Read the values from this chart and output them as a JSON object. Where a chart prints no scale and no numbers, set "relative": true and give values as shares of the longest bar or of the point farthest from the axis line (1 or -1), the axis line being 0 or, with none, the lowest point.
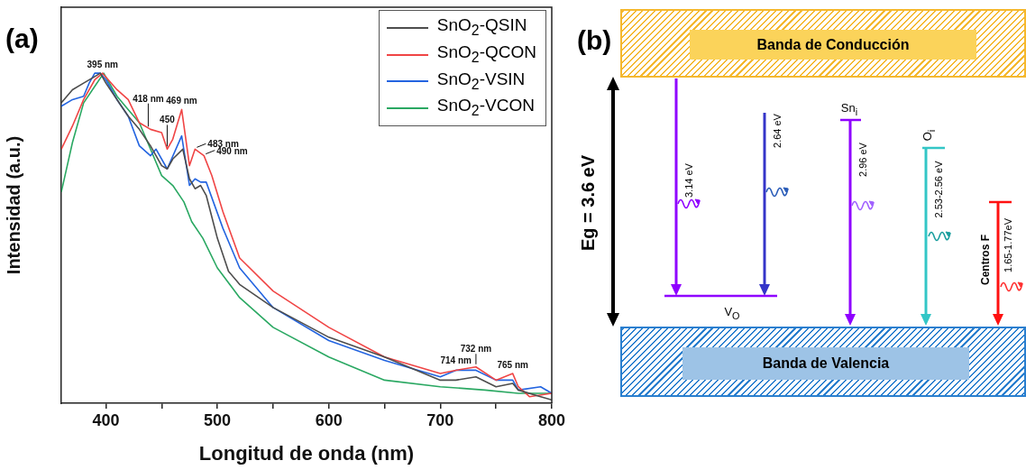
{
  "chart_data": [
    {
      "type": "line",
      "title": "(a)",
      "xlabel": "Longitud de onda (nm)",
      "ylabel": "Intensidad (a.u.)",
      "relative": true,
      "legend": "top right",
      "marker": "none",
      "xlim": [
        360,
        800
      ],
      "xticks": [
        400,
        {
          "value": 450,
          "label": null
        },
        500,
        {
          "value": 550,
          "label": null
        },
        600,
        {
          "value": 650,
          "label": null
        },
        700,
        {
          "value": 750,
          "label": null
        },
        800
      ],
      "series": [
        {
          "name": "SnO$_{2}$-QSIN",
          "color": "#4d4d4d",
          "x": [
            360,
            370,
            380,
            390,
            395,
            400,
            410,
            420,
            430,
            440,
            450,
            455,
            460,
            469,
            475,
            480,
            485,
            490,
            500,
            510,
            520,
            550,
            600,
            650,
            700,
            714,
            732,
            750,
            765,
            770,
            790,
            800
          ],
          "values": [
            0.91,
            0.95,
            0.97,
            0.99,
            1.0,
            0.97,
            0.92,
            0.87,
            0.83,
            0.78,
            0.72,
            0.71,
            0.74,
            0.77,
            0.68,
            0.65,
            0.66,
            0.63,
            0.5,
            0.4,
            0.36,
            0.29,
            0.2,
            0.14,
            0.07,
            0.07,
            0.08,
            0.05,
            0.06,
            0.04,
            0.02,
            0.01
          ]
        },
        {
          "name": "SnO$_{2}$-QCON",
          "color": "#f04545",
          "x": [
            360,
            370,
            380,
            390,
            397,
            410,
            420,
            430,
            440,
            450,
            455,
            460,
            468,
            475,
            480,
            488,
            495,
            505,
            520,
            550,
            600,
            650,
            700,
            714,
            732,
            750,
            765,
            770,
            780,
            800
          ],
          "values": [
            0.77,
            0.84,
            0.92,
            0.98,
            1.0,
            0.95,
            0.92,
            0.85,
            0.83,
            0.82,
            0.77,
            0.8,
            0.89,
            0.72,
            0.77,
            0.75,
            0.69,
            0.58,
            0.44,
            0.34,
            0.23,
            0.14,
            0.09,
            0.1,
            0.11,
            0.07,
            0.09,
            0.05,
            0.02,
            0.03
          ]
        },
        {
          "name": "SnO$_{2}$-VSIN",
          "color": "#2364e0",
          "x": [
            360,
            370,
            380,
            385,
            390,
            395,
            400,
            410,
            420,
            430,
            440,
            445,
            455,
            468,
            475,
            480,
            485,
            490,
            505,
            520,
            550,
            600,
            650,
            700,
            714,
            732,
            750,
            765,
            770,
            790,
            800
          ],
          "values": [
            0.9,
            0.92,
            0.93,
            0.97,
            1.0,
            1.0,
            0.98,
            0.92,
            0.87,
            0.78,
            0.75,
            0.77,
            0.71,
            0.81,
            0.66,
            0.68,
            0.67,
            0.67,
            0.53,
            0.41,
            0.29,
            0.19,
            0.13,
            0.08,
            0.1,
            0.1,
            0.07,
            0.07,
            0.04,
            0.05,
            0.03
          ]
        },
        {
          "name": "SnO$_{2}$-VCON",
          "color": "#2aa862",
          "x": [
            360,
            370,
            380,
            390,
            398,
            410,
            420,
            430,
            440,
            450,
            460,
            470,
            477,
            487,
            500,
            520,
            550,
            600,
            650,
            700,
            740,
            770,
            800
          ],
          "values": [
            0.64,
            0.79,
            0.91,
            0.96,
            1.0,
            0.93,
            0.89,
            0.85,
            0.77,
            0.69,
            0.66,
            0.61,
            0.55,
            0.5,
            0.41,
            0.32,
            0.23,
            0.14,
            0.07,
            0.05,
            0.04,
            0.03,
            0.03
          ]
        }
      ],
      "annotations": [
        {
          "text": "395 nm",
          "x": 397,
          "y": 1.0
        },
        {
          "text": "418 nm",
          "x": 438,
          "y": 0.83
        },
        {
          "text": "450",
          "x": 455,
          "y": 0.77
        },
        {
          "text": "469 nm",
          "x": 468,
          "y": 0.89
        },
        {
          "text": "483 nm",
          "x": 480,
          "y": 0.77
        },
        {
          "text": "490 nm",
          "x": 488,
          "y": 0.75
        },
        {
          "text": "714 nm",
          "x": 714,
          "y": 0.1
        },
        {
          "text": "732 nm",
          "x": 732,
          "y": 0.11
        },
        {
          "text": "765 nm",
          "x": 765,
          "y": 0.09
        }
      ]
    },
    {
      "type": "other",
      "title": "(b)",
      "annotations": [
        "Banda de Conducción",
        "Banda de Valencia",
        "Eg = 3.6 eV",
        "3.14 eV",
        "2.64 eV",
        "V$_{O}$",
        "Sn$_{i}$",
        "2.96 eV",
        "O$_{i}$",
        "2.53-2.56 eV",
        "Centros F",
        "1.65-1.77eV"
      ]
    }
  ]
}
